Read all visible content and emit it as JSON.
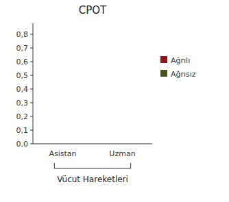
{
  "chart_data": {
    "type": "bar",
    "title": "CPOT",
    "xlabel": "Vücut Hareketleri",
    "categories": [
      "Asistan",
      "Uzman"
    ],
    "series": [
      {
        "name": "Ağrılı",
        "color": "#8B1A1A",
        "values": [
          0.0,
          0.0
        ]
      },
      {
        "name": "Ağrısız",
        "color": "#4B5320",
        "values": [
          0.0,
          0.0
        ]
      }
    ],
    "ylim": [
      0.0,
      0.88
    ],
    "yticks": [
      {
        "value": 0.0,
        "label": "0,0"
      },
      {
        "value": 0.1,
        "label": "0,1"
      },
      {
        "value": 0.2,
        "label": "0,2"
      },
      {
        "value": 0.3,
        "label": "0,3"
      },
      {
        "value": 0.4,
        "label": "0,4"
      },
      {
        "value": 0.5,
        "label": "0,5"
      },
      {
        "value": 0.6,
        "label": "0,6"
      },
      {
        "value": 0.7,
        "label": "0,7"
      },
      {
        "value": 0.8,
        "label": "0,8"
      }
    ],
    "grid": false,
    "legend": "right"
  }
}
